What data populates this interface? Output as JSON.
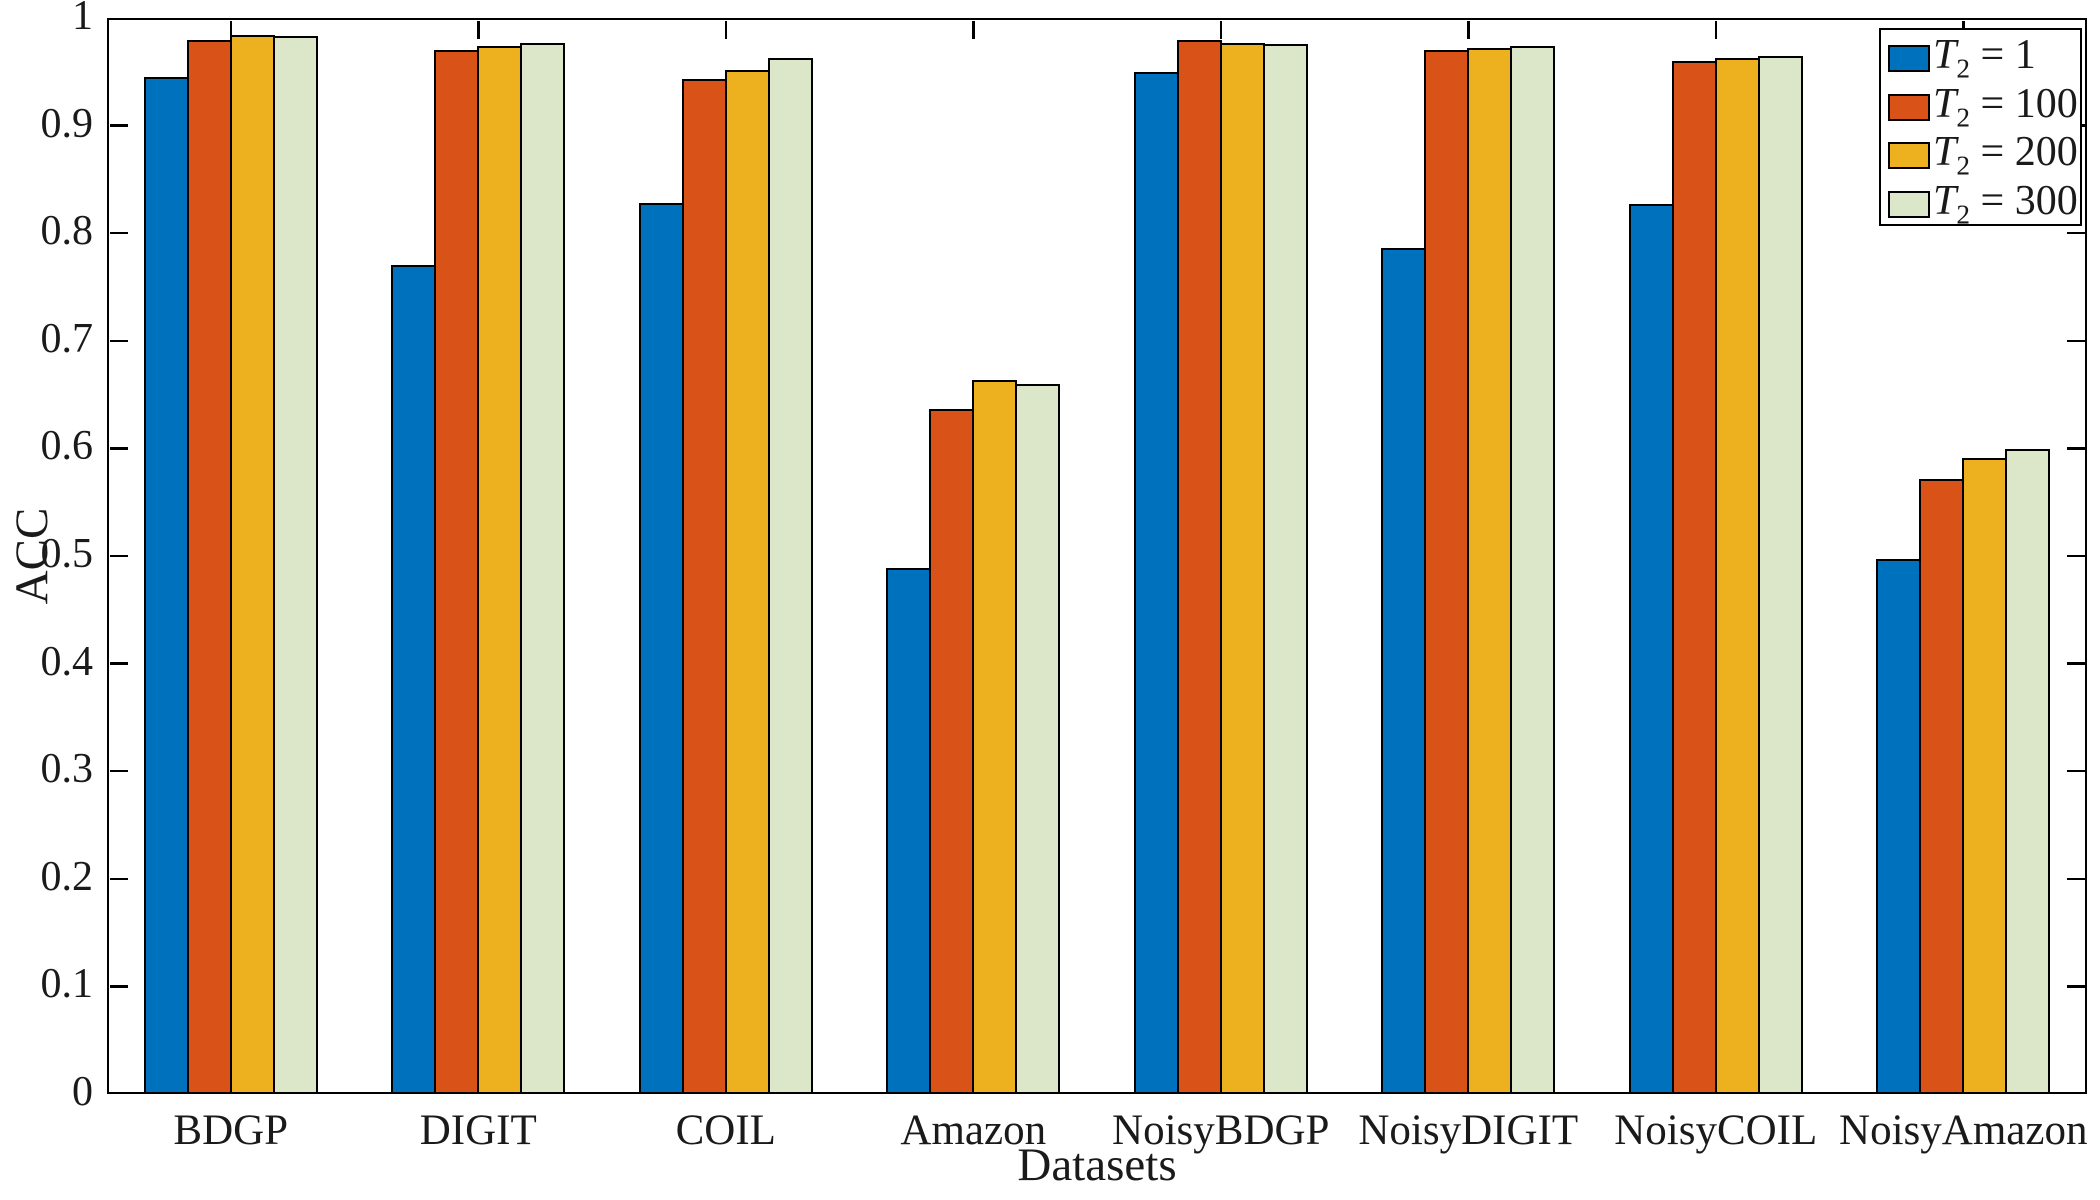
{
  "figure": {
    "background": "#ffffff"
  },
  "chart_data": {
    "type": "bar",
    "title": "",
    "xlabel": "Datasets",
    "ylabel": "ACC",
    "ylim": [
      0,
      1
    ],
    "yticks": [
      0,
      0.1,
      0.2,
      0.3,
      0.4,
      0.5,
      0.6,
      0.7,
      0.8,
      0.9,
      1
    ],
    "ytick_labels": [
      "0",
      "0.1",
      "0.2",
      "0.3",
      "0.4",
      "0.5",
      "0.6",
      "0.7",
      "0.8",
      "0.9",
      "1"
    ],
    "categories": [
      "BDGP",
      "DIGIT",
      "COIL",
      "Amazon",
      "NoisyBDGP",
      "NoisyDIGIT",
      "NoisyCOIL",
      "NoisyAmazon"
    ],
    "series": [
      {
        "name": "T2 = 1",
        "legend_base": "T",
        "legend_sub": "2",
        "legend_rest": " = 1",
        "color": "#0072BD",
        "values": [
          0.945,
          0.77,
          0.828,
          0.489,
          0.95,
          0.786,
          0.827,
          0.497
        ]
      },
      {
        "name": "T2 = 100",
        "legend_base": "T",
        "legend_sub": "2",
        "legend_rest": " = 100",
        "color": "#D95319",
        "values": [
          0.98,
          0.97,
          0.943,
          0.637,
          0.98,
          0.97,
          0.96,
          0.572
        ]
      },
      {
        "name": "T2 = 200",
        "legend_base": "T",
        "legend_sub": "2",
        "legend_rest": " = 200",
        "color": "#EDB120",
        "values": [
          0.984,
          0.974,
          0.952,
          0.664,
          0.977,
          0.972,
          0.963,
          0.591
        ]
      },
      {
        "name": "T2 = 300",
        "legend_base": "T",
        "legend_sub": "2",
        "legend_rest": " = 300",
        "color": "#DCE6C9",
        "values": [
          0.983,
          0.977,
          0.963,
          0.66,
          0.976,
          0.974,
          0.965,
          0.599
        ]
      }
    ],
    "bar_edge_color": "#000000",
    "axis_color": "#000000",
    "grid": false,
    "legend_position": "top-right"
  }
}
